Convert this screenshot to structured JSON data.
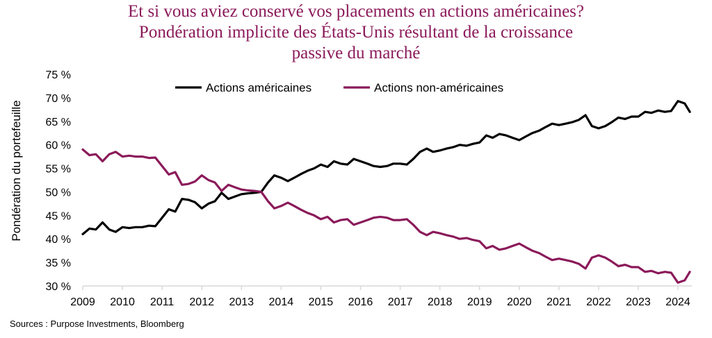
{
  "chart_data": {
    "type": "line",
    "title": [
      "Et si vous aviez conservé vos placements en actions américaines?",
      "Pondération implicite des États-Unis résultant de la croissance",
      "passive du marché"
    ],
    "ylabel": "Pondération du portefeuille",
    "xlabel": "",
    "ylim": [
      30,
      75
    ],
    "xlim": [
      2009,
      2024.35
    ],
    "y_ticks": [
      30,
      35,
      40,
      45,
      50,
      55,
      60,
      65,
      70,
      75
    ],
    "y_tick_labels": [
      "30 %",
      "35 %",
      "40 %",
      "45 %",
      "50 %",
      "55 %",
      "60 %",
      "65 %",
      "70 %",
      "75 %"
    ],
    "x_ticks": [
      2009,
      2010,
      2011,
      2012,
      2013,
      2014,
      2015,
      2016,
      2017,
      2018,
      2019,
      2020,
      2021,
      2022,
      2023,
      2024
    ],
    "x_tick_labels": [
      "2009",
      "2010",
      "2011",
      "2012",
      "2013",
      "2014",
      "2015",
      "2016",
      "2017",
      "2018",
      "2019",
      "2020",
      "2021",
      "2022",
      "2023",
      "2024"
    ],
    "legend_position": "top",
    "colors": {
      "us": "#000000",
      "non_us": "#8b1a5a",
      "axis": "#d9d9d9",
      "title": "#8b1a5a"
    },
    "series": [
      {
        "name": "Actions américaines",
        "color": "#000000",
        "x": [
          2009.0,
          2009.17,
          2009.33,
          2009.5,
          2009.67,
          2009.83,
          2010.0,
          2010.17,
          2010.33,
          2010.5,
          2010.67,
          2010.83,
          2011.0,
          2011.17,
          2011.33,
          2011.5,
          2011.67,
          2011.83,
          2012.0,
          2012.17,
          2012.33,
          2012.5,
          2012.67,
          2012.83,
          2013.0,
          2013.17,
          2013.33,
          2013.5,
          2013.67,
          2013.83,
          2014.0,
          2014.17,
          2014.33,
          2014.5,
          2014.67,
          2014.83,
          2015.0,
          2015.17,
          2015.33,
          2015.5,
          2015.67,
          2015.83,
          2016.0,
          2016.17,
          2016.33,
          2016.5,
          2016.67,
          2016.83,
          2017.0,
          2017.17,
          2017.33,
          2017.5,
          2017.67,
          2017.83,
          2018.0,
          2018.17,
          2018.33,
          2018.5,
          2018.67,
          2018.83,
          2019.0,
          2019.17,
          2019.33,
          2019.5,
          2019.67,
          2019.83,
          2020.0,
          2020.17,
          2020.33,
          2020.5,
          2020.67,
          2020.83,
          2021.0,
          2021.17,
          2021.33,
          2021.5,
          2021.67,
          2021.83,
          2022.0,
          2022.17,
          2022.33,
          2022.5,
          2022.67,
          2022.83,
          2023.0,
          2023.17,
          2023.33,
          2023.5,
          2023.67,
          2023.83,
          2024.0,
          2024.17,
          2024.3
        ],
        "values": [
          41.0,
          42.2,
          42.0,
          43.5,
          42.0,
          41.5,
          42.5,
          42.3,
          42.5,
          42.5,
          42.8,
          42.7,
          44.5,
          46.3,
          45.8,
          48.5,
          48.3,
          47.8,
          46.5,
          47.5,
          48.0,
          49.8,
          48.5,
          49.0,
          49.5,
          49.7,
          49.8,
          50.0,
          52.0,
          53.5,
          53.0,
          52.3,
          53.0,
          53.8,
          54.5,
          55.0,
          55.8,
          55.3,
          56.5,
          56.0,
          55.8,
          57.0,
          56.5,
          56.0,
          55.5,
          55.3,
          55.5,
          56.0,
          56.0,
          55.8,
          57.0,
          58.5,
          59.2,
          58.5,
          58.8,
          59.2,
          59.5,
          60.0,
          59.8,
          60.2,
          60.5,
          62.0,
          61.5,
          62.3,
          62.0,
          61.5,
          61.0,
          61.8,
          62.5,
          63.0,
          63.8,
          64.5,
          64.2,
          64.5,
          64.8,
          65.3,
          66.3,
          64.0,
          63.5,
          64.0,
          64.8,
          65.8,
          65.5,
          66.0,
          66.0,
          67.0,
          66.8,
          67.3,
          67.0,
          67.2,
          69.3,
          68.8,
          67.0
        ]
      },
      {
        "name": "Actions non-américaines",
        "color": "#8b1a5a",
        "x": [
          2009.0,
          2009.17,
          2009.33,
          2009.5,
          2009.67,
          2009.83,
          2010.0,
          2010.17,
          2010.33,
          2010.5,
          2010.67,
          2010.83,
          2011.0,
          2011.17,
          2011.33,
          2011.5,
          2011.67,
          2011.83,
          2012.0,
          2012.17,
          2012.33,
          2012.5,
          2012.67,
          2012.83,
          2013.0,
          2013.17,
          2013.33,
          2013.5,
          2013.67,
          2013.83,
          2014.0,
          2014.17,
          2014.33,
          2014.5,
          2014.67,
          2014.83,
          2015.0,
          2015.17,
          2015.33,
          2015.5,
          2015.67,
          2015.83,
          2016.0,
          2016.17,
          2016.33,
          2016.5,
          2016.67,
          2016.83,
          2017.0,
          2017.17,
          2017.33,
          2017.5,
          2017.67,
          2017.83,
          2018.0,
          2018.17,
          2018.33,
          2018.5,
          2018.67,
          2018.83,
          2019.0,
          2019.17,
          2019.33,
          2019.5,
          2019.67,
          2019.83,
          2020.0,
          2020.17,
          2020.33,
          2020.5,
          2020.67,
          2020.83,
          2021.0,
          2021.17,
          2021.33,
          2021.5,
          2021.67,
          2021.83,
          2022.0,
          2022.17,
          2022.33,
          2022.5,
          2022.67,
          2022.83,
          2023.0,
          2023.17,
          2023.33,
          2023.5,
          2023.67,
          2023.83,
          2024.0,
          2024.17,
          2024.3
        ],
        "values": [
          59.0,
          57.8,
          58.0,
          56.5,
          58.0,
          58.5,
          57.5,
          57.7,
          57.5,
          57.5,
          57.2,
          57.3,
          55.5,
          53.7,
          54.2,
          51.5,
          51.7,
          52.2,
          53.5,
          52.5,
          52.0,
          50.2,
          51.5,
          51.0,
          50.5,
          50.3,
          50.2,
          50.0,
          48.0,
          46.5,
          47.0,
          47.7,
          47.0,
          46.2,
          45.5,
          45.0,
          44.2,
          44.7,
          43.5,
          44.0,
          44.2,
          43.0,
          43.5,
          44.0,
          44.5,
          44.7,
          44.5,
          44.0,
          44.0,
          44.2,
          43.0,
          41.5,
          40.8,
          41.5,
          41.2,
          40.8,
          40.5,
          40.0,
          40.2,
          39.8,
          39.5,
          38.0,
          38.5,
          37.7,
          38.0,
          38.5,
          39.0,
          38.2,
          37.5,
          37.0,
          36.2,
          35.5,
          35.8,
          35.5,
          35.2,
          34.7,
          33.7,
          36.0,
          36.5,
          36.0,
          35.2,
          34.2,
          34.5,
          34.0,
          34.0,
          33.0,
          33.2,
          32.7,
          33.0,
          32.8,
          30.7,
          31.2,
          33.0
        ]
      }
    ]
  },
  "source": "Sources : Purpose Investments, Bloomberg"
}
